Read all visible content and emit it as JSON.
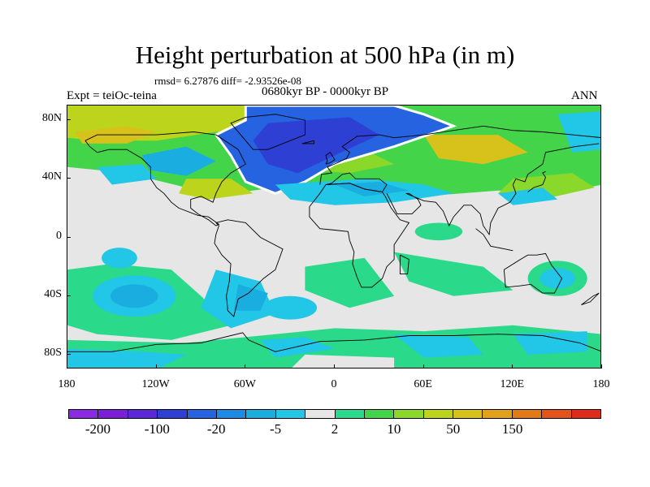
{
  "title": "Height perturbation at 500 hPa (in m)",
  "stats": "rmsd= 6.27876 diff= -2.93526e-08",
  "experiment": "Expt = teiOc-teina",
  "period": "0680kyr BP - 0000kyr BP",
  "season": "ANN",
  "map": {
    "lon_range": [
      -180,
      180
    ],
    "lat_range": [
      -90,
      90
    ],
    "lat_ticks": [
      {
        "label": "80N",
        "value": 80
      },
      {
        "label": "40N",
        "value": 40
      },
      {
        "label": "0",
        "value": 0
      },
      {
        "label": "40S",
        "value": -40
      },
      {
        "label": "80S",
        "value": -80
      }
    ],
    "lon_ticks": [
      {
        "label": "180",
        "value": -180
      },
      {
        "label": "120W",
        "value": -120
      },
      {
        "label": "60W",
        "value": -60
      },
      {
        "label": "0",
        "value": 0
      },
      {
        "label": "60E",
        "value": 60
      },
      {
        "label": "120E",
        "value": 120
      },
      {
        "label": "180",
        "value": 180
      }
    ]
  },
  "colorbar": {
    "colors": [
      "#8a2be2",
      "#7a1fd6",
      "#5a28d6",
      "#2e3fd4",
      "#2563e0",
      "#1f8ae3",
      "#1aaee0",
      "#22c6e6",
      "#e6e6e6",
      "#2ad98a",
      "#44d44a",
      "#8ad82a",
      "#bcd41c",
      "#d6c21a",
      "#e3a01a",
      "#e37a1a",
      "#e3531a",
      "#e02a1a"
    ],
    "labels": [
      {
        "text": "-200",
        "index": 1
      },
      {
        "text": "-100",
        "index": 3
      },
      {
        "text": "-20",
        "index": 5
      },
      {
        "text": "-5",
        "index": 7
      },
      {
        "text": "2",
        "index": 9
      },
      {
        "text": "10",
        "index": 11
      },
      {
        "text": "50",
        "index": 13
      },
      {
        "text": "150",
        "index": 15
      }
    ]
  },
  "field_colors": {
    "neutral": "#e6e6e6",
    "light_blue": "#22c6e6",
    "mid_blue": "#1aaee0",
    "blue": "#2563e0",
    "deep_blue": "#2e3fd4",
    "green_light": "#2ad98a",
    "green": "#44d44a",
    "lime": "#8ad82a",
    "yellow": "#bcd41c",
    "gold": "#d6c21a",
    "zero_line": "#ffffff",
    "coast": "#000000"
  }
}
